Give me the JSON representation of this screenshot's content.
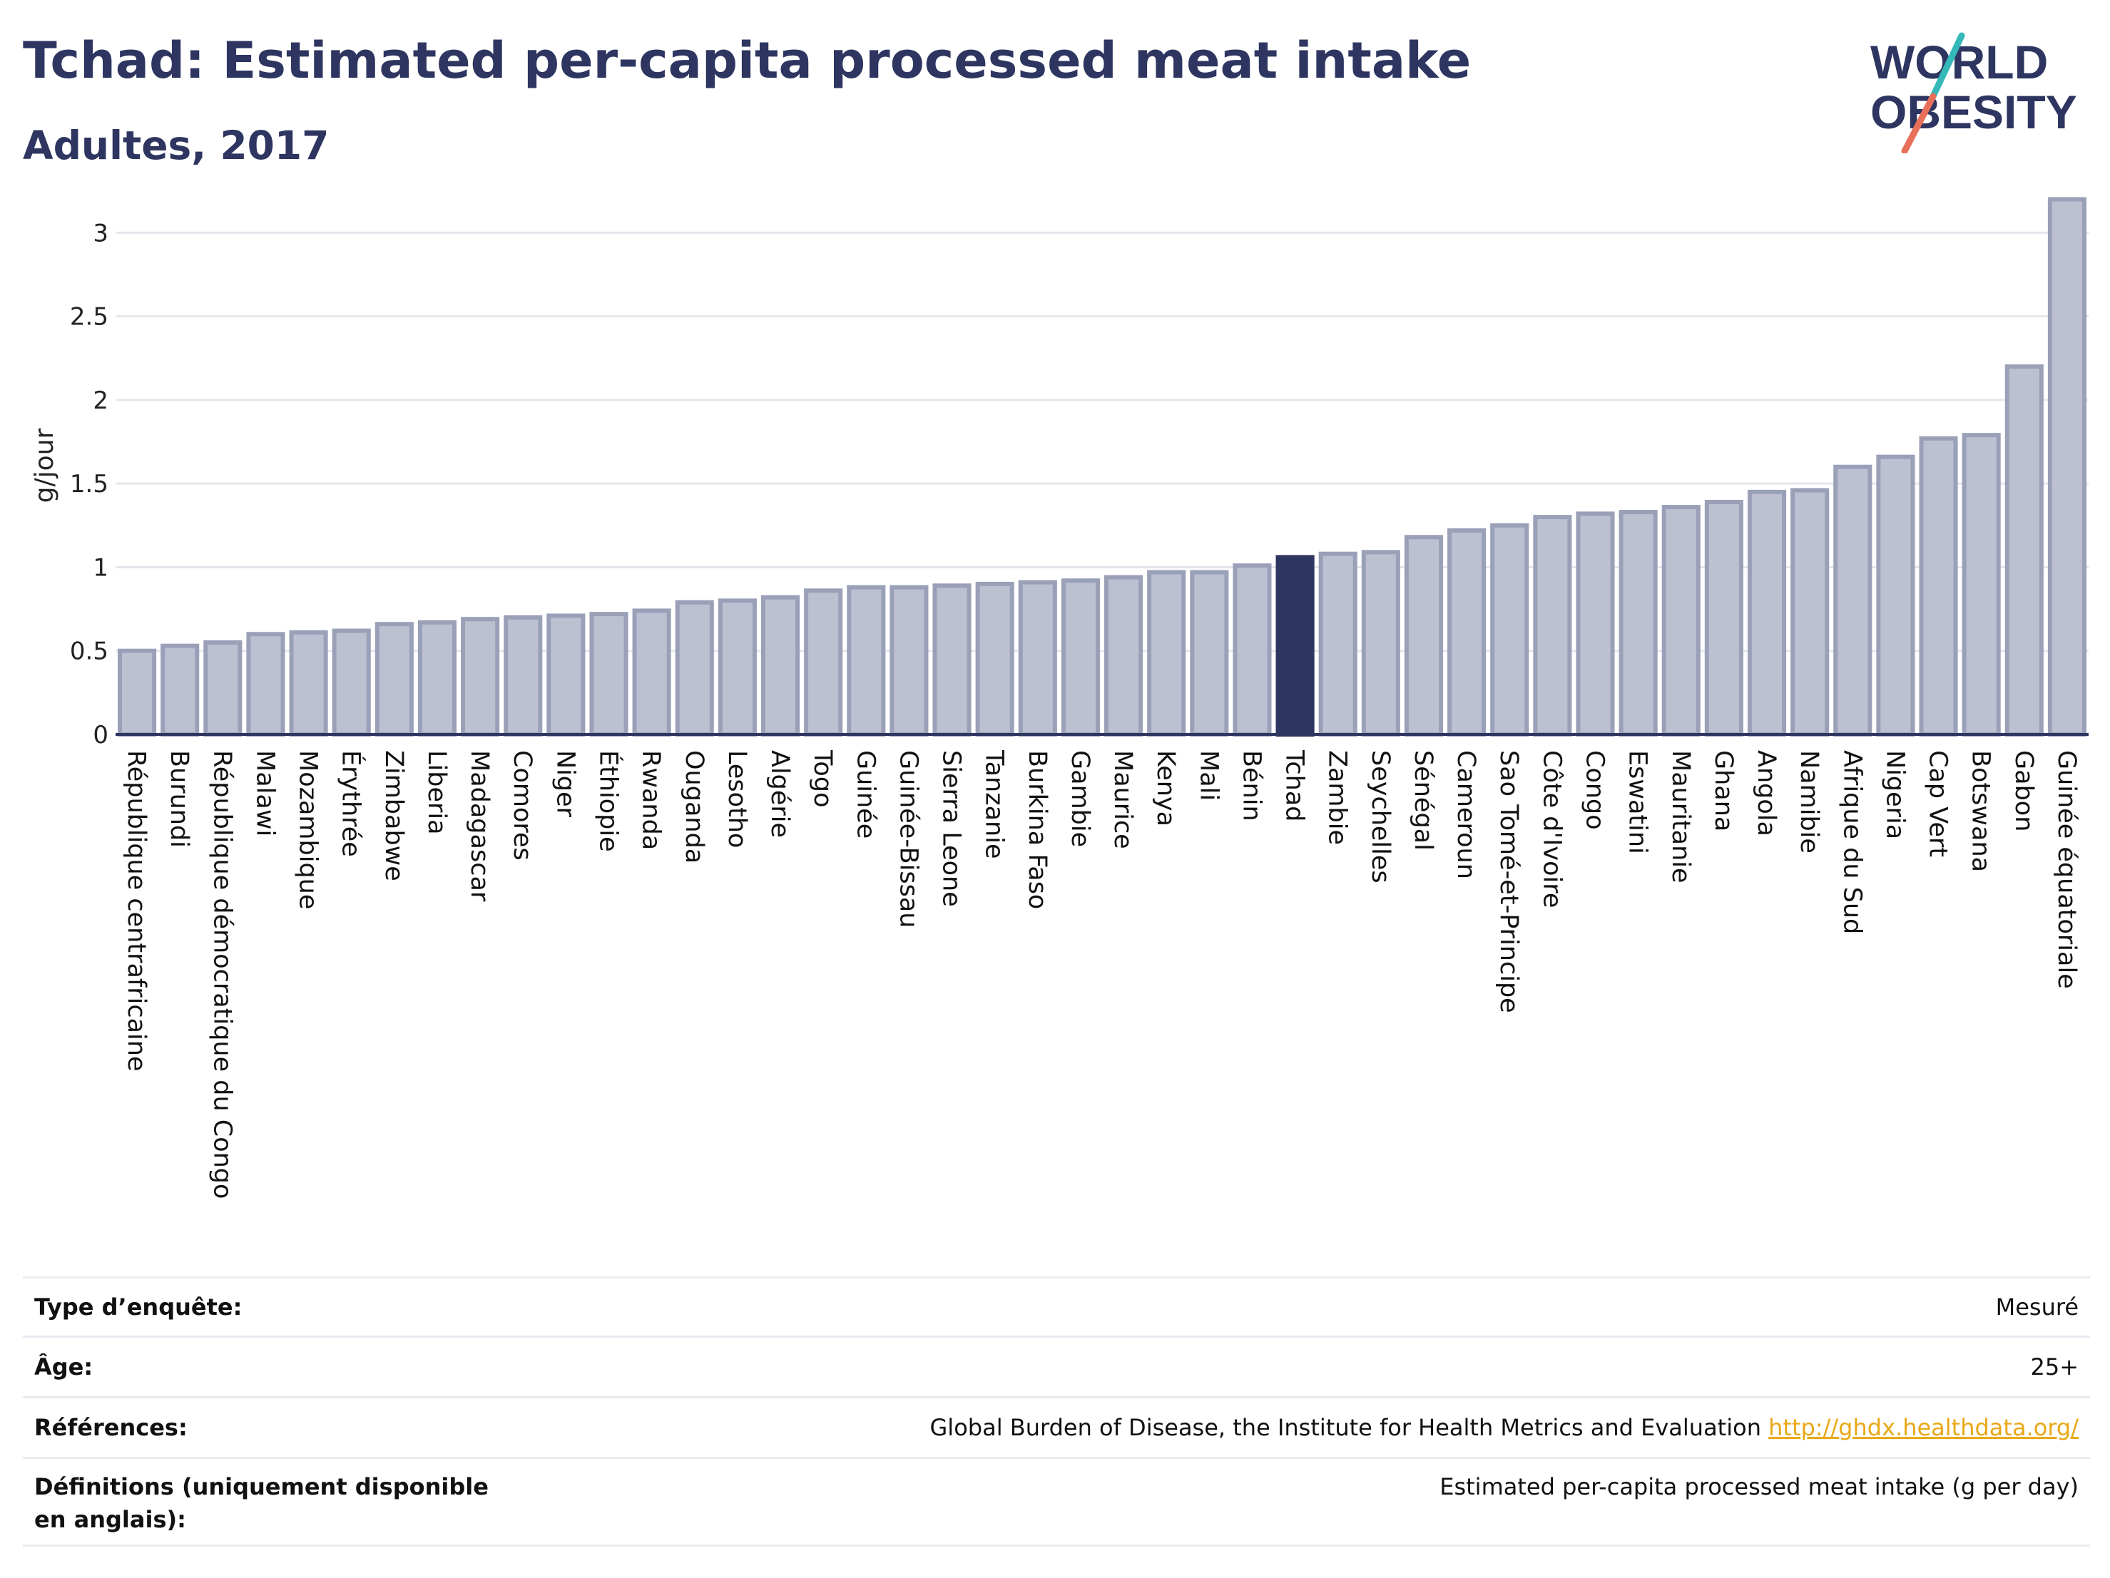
{
  "header": {
    "title": "Tchad: Estimated per-capita processed meat intake",
    "subtitle": "Adultes, 2017"
  },
  "logo": {
    "line1": "WORLD",
    "line2": "OBESITY",
    "colors": {
      "text": "#2d3560",
      "slash_teal": "#35b8b8",
      "slash_coral": "#e8705a"
    }
  },
  "colors": {
    "bar": "#bcc0d0",
    "bar_border": "#9aa0b8",
    "highlight": "#2d3560",
    "grid": "#e4e6ec",
    "axis": "#2d3560"
  },
  "chart_data": {
    "type": "bar",
    "ylabel": "g/jour",
    "ylim": [
      0,
      3.3
    ],
    "yticks": [
      0,
      0.5,
      1,
      1.5,
      2,
      2.5,
      3
    ],
    "ytick_labels": [
      "0",
      "0.5",
      "1",
      "1.5",
      "2",
      "2.5",
      "3"
    ],
    "grid": true,
    "highlight": "Tchad",
    "categories": [
      "République centrafricaine",
      "Burundi",
      "République démocratique du Congo",
      "Malawi",
      "Mozambique",
      "Érythrée",
      "Zimbabwe",
      "Liberia",
      "Madagascar",
      "Comores",
      "Niger",
      "Éthiopie",
      "Rwanda",
      "Ouganda",
      "Lesotho",
      "Algérie",
      "Togo",
      "Guinée",
      "Guinée-Bissau",
      "Sierra Leone",
      "Tanzanie",
      "Burkina Faso",
      "Gambie",
      "Maurice",
      "Kenya",
      "Mali",
      "Bénin",
      "Tchad",
      "Zambie",
      "Seychelles",
      "Sénégal",
      "Cameroun",
      "Sao Tomé-et-Principe",
      "Côte d'Ivoire",
      "Congo",
      "Eswatini",
      "Mauritanie",
      "Ghana",
      "Angola",
      "Namibie",
      "Afrique du Sud",
      "Nigeria",
      "Cap Vert",
      "Botswana",
      "Gabon",
      "Guinée équatoriale"
    ],
    "values": [
      0.5,
      0.53,
      0.55,
      0.6,
      0.61,
      0.62,
      0.66,
      0.67,
      0.69,
      0.7,
      0.71,
      0.72,
      0.74,
      0.79,
      0.8,
      0.82,
      0.86,
      0.88,
      0.88,
      0.89,
      0.9,
      0.91,
      0.92,
      0.94,
      0.97,
      0.97,
      1.01,
      1.06,
      1.08,
      1.09,
      1.18,
      1.22,
      1.25,
      1.3,
      1.32,
      1.33,
      1.36,
      1.39,
      1.45,
      1.46,
      1.6,
      1.66,
      1.77,
      1.79,
      2.2,
      3.2
    ]
  },
  "info": [
    {
      "label": "Type d’enquête:",
      "value": "Mesuré"
    },
    {
      "label": "Âge:",
      "value": "25+"
    },
    {
      "label": "Références:",
      "value": "Global Burden of Disease, the Institute for Health Metrics and Evaluation",
      "link": "http://ghdx.healthdata.org/"
    },
    {
      "label": "Définitions (uniquement disponible en anglais):",
      "value": "Estimated per-capita processed meat intake (g per day)"
    }
  ]
}
